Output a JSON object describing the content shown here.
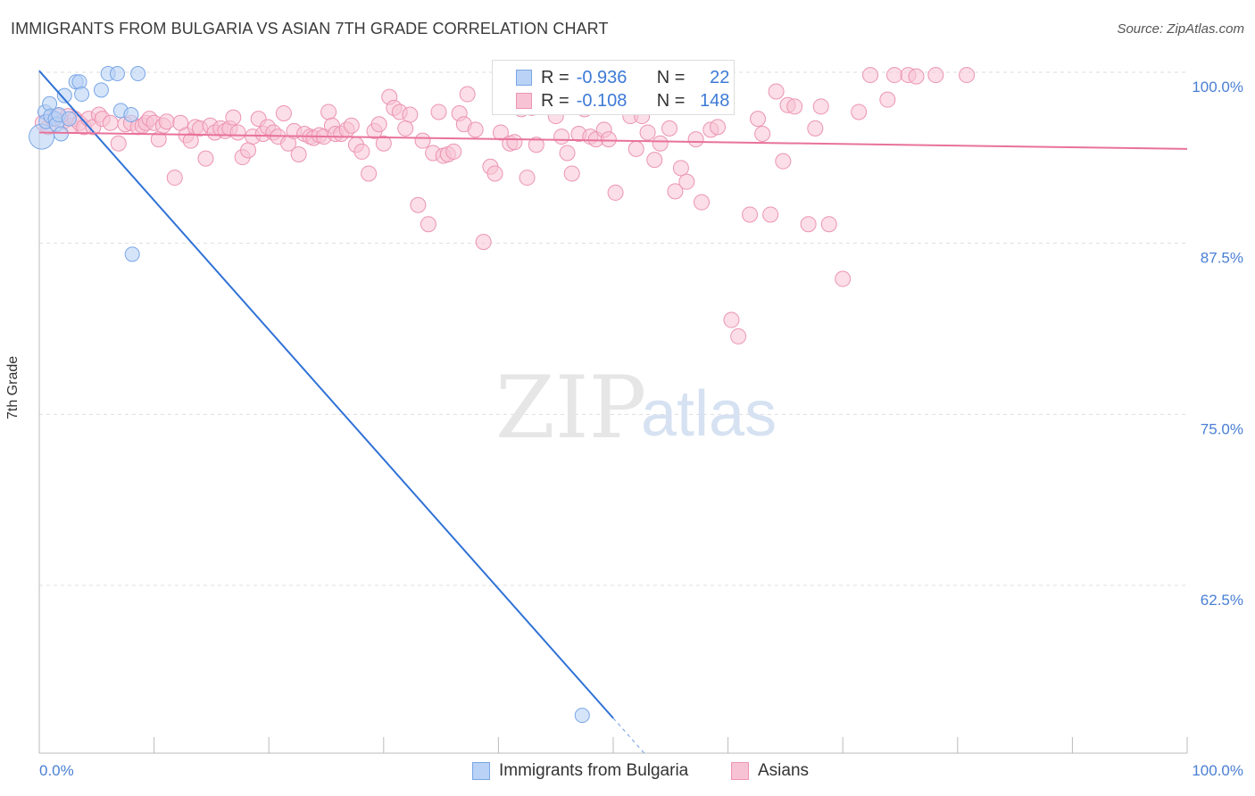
{
  "title": "IMMIGRANTS FROM BULGARIA VS ASIAN 7TH GRADE CORRELATION CHART",
  "source": "Source: ZipAtlas.com",
  "watermark": {
    "zip": "ZIP",
    "atlas": "atlas"
  },
  "colors": {
    "bulgaria_fill": "#b9d2f5",
    "bulgaria_stroke": "#7aa6e6",
    "bulgaria_line": "#2f72d6",
    "asians_fill": "#f7c3d4",
    "asians_stroke": "#ec94b3",
    "asians_line": "#e8729a",
    "tick_label": "#4a7fd4",
    "grid": "#dddddd"
  },
  "legend": {
    "rows": [
      {
        "r_label": "R =",
        "r_value": "-0.936",
        "n_label": "N =",
        "n_value": "22"
      },
      {
        "r_label": "R =",
        "r_value": "-0.108",
        "n_label": "N =",
        "n_value": "148"
      }
    ]
  },
  "bottom_legend": {
    "series1": "Immigrants from Bulgaria",
    "series2": "Asians"
  },
  "chart_data": {
    "type": "scatter",
    "title": "IMMIGRANTS FROM BULGARIA VS ASIAN 7TH GRADE CORRELATION CHART",
    "xlabel": "",
    "ylabel": "7th Grade",
    "xlim": [
      0,
      100
    ],
    "ylim": [
      50,
      100
    ],
    "x_tick_labels": [
      "0.0%",
      "100.0%"
    ],
    "y_ticks": [
      100.0,
      87.5,
      75.0,
      62.5
    ],
    "y_tick_labels": [
      "100.0%",
      "87.5%",
      "75.0%",
      "62.5%"
    ],
    "grid": true,
    "legend_position": "top-center",
    "series": [
      {
        "name": "Immigrants from Bulgaria",
        "r": -0.936,
        "n": 22,
        "trend": {
          "x0": 0.0,
          "y0": 100.1,
          "x1": 50.0,
          "y1": 52.8
        },
        "points": [
          [
            0.2,
            95.3
          ],
          [
            0.5,
            97.1
          ],
          [
            0.6,
            96.4
          ],
          [
            0.9,
            97.7
          ],
          [
            1.0,
            96.8
          ],
          [
            1.4,
            96.6
          ],
          [
            1.5,
            96.2
          ],
          [
            1.7,
            96.9
          ],
          [
            1.9,
            95.5
          ],
          [
            2.2,
            98.3
          ],
          [
            2.6,
            96.6
          ],
          [
            3.2,
            99.3
          ],
          [
            3.5,
            99.3
          ],
          [
            3.7,
            98.4
          ],
          [
            5.4,
            98.7
          ],
          [
            6.0,
            99.9
          ],
          [
            6.8,
            99.9
          ],
          [
            7.1,
            97.2
          ],
          [
            8.0,
            96.9
          ],
          [
            8.1,
            86.7
          ],
          [
            8.6,
            99.9
          ],
          [
            47.3,
            53.0
          ]
        ]
      },
      {
        "name": "Asians",
        "r": -0.108,
        "n": 148,
        "trend": {
          "x0": 0.0,
          "y0": 95.6,
          "x1": 100.0,
          "y1": 94.4
        },
        "points": [
          [
            0.3,
            96.3
          ],
          [
            0.8,
            96.0
          ],
          [
            1.2,
            96.6
          ],
          [
            1.6,
            96.8
          ],
          [
            2.1,
            96.4
          ],
          [
            2.5,
            96.8
          ],
          [
            2.8,
            96.1
          ],
          [
            3.1,
            96.6
          ],
          [
            3.5,
            96.3
          ],
          [
            3.9,
            96.0
          ],
          [
            4.3,
            96.6
          ],
          [
            4.7,
            96.0
          ],
          [
            5.2,
            96.9
          ],
          [
            5.5,
            96.6
          ],
          [
            6.2,
            96.3
          ],
          [
            6.9,
            94.8
          ],
          [
            7.5,
            96.2
          ],
          [
            8.0,
            96.3
          ],
          [
            8.6,
            96.0
          ],
          [
            9.0,
            96.1
          ],
          [
            9.3,
            96.3
          ],
          [
            9.6,
            96.6
          ],
          [
            10.0,
            96.3
          ],
          [
            10.4,
            95.1
          ],
          [
            10.8,
            96.1
          ],
          [
            11.1,
            96.4
          ],
          [
            11.8,
            92.3
          ],
          [
            12.3,
            96.3
          ],
          [
            12.8,
            95.4
          ],
          [
            13.2,
            95.0
          ],
          [
            13.6,
            96.0
          ],
          [
            14.0,
            95.9
          ],
          [
            14.5,
            93.7
          ],
          [
            14.9,
            96.1
          ],
          [
            15.3,
            95.6
          ],
          [
            15.8,
            95.9
          ],
          [
            16.2,
            95.7
          ],
          [
            16.6,
            95.9
          ],
          [
            16.9,
            96.7
          ],
          [
            17.3,
            95.6
          ],
          [
            17.7,
            93.8
          ],
          [
            18.2,
            94.3
          ],
          [
            18.6,
            95.3
          ],
          [
            19.1,
            96.6
          ],
          [
            19.5,
            95.5
          ],
          [
            19.9,
            96.0
          ],
          [
            20.4,
            95.6
          ],
          [
            20.8,
            95.3
          ],
          [
            21.3,
            97.0
          ],
          [
            21.7,
            94.8
          ],
          [
            22.2,
            95.7
          ],
          [
            22.6,
            94.0
          ],
          [
            23.1,
            95.5
          ],
          [
            23.6,
            95.3
          ],
          [
            23.9,
            95.2
          ],
          [
            24.4,
            95.4
          ],
          [
            24.8,
            95.3
          ],
          [
            25.2,
            97.1
          ],
          [
            25.5,
            96.1
          ],
          [
            25.8,
            95.5
          ],
          [
            26.3,
            95.5
          ],
          [
            26.8,
            95.8
          ],
          [
            27.2,
            96.1
          ],
          [
            27.6,
            94.7
          ],
          [
            28.1,
            94.2
          ],
          [
            28.7,
            92.6
          ],
          [
            29.2,
            95.7
          ],
          [
            29.6,
            96.2
          ],
          [
            30.0,
            94.8
          ],
          [
            30.5,
            98.2
          ],
          [
            30.9,
            97.4
          ],
          [
            31.4,
            97.1
          ],
          [
            31.9,
            95.9
          ],
          [
            32.3,
            96.9
          ],
          [
            33.0,
            90.3
          ],
          [
            33.4,
            95.0
          ],
          [
            33.9,
            88.9
          ],
          [
            34.3,
            94.1
          ],
          [
            34.8,
            97.1
          ],
          [
            35.2,
            93.9
          ],
          [
            35.6,
            94.0
          ],
          [
            36.1,
            94.2
          ],
          [
            36.6,
            97.0
          ],
          [
            37.0,
            96.2
          ],
          [
            37.3,
            98.4
          ],
          [
            38.0,
            95.8
          ],
          [
            38.7,
            87.6
          ],
          [
            39.3,
            93.1
          ],
          [
            39.7,
            92.6
          ],
          [
            40.2,
            95.6
          ],
          [
            40.6,
            98.2
          ],
          [
            41.0,
            94.8
          ],
          [
            41.4,
            94.9
          ],
          [
            42.0,
            97.3
          ],
          [
            42.5,
            92.3
          ],
          [
            42.9,
            97.4
          ],
          [
            43.3,
            94.7
          ],
          [
            44.1,
            97.9
          ],
          [
            45.0,
            96.8
          ],
          [
            45.5,
            95.3
          ],
          [
            46.0,
            94.1
          ],
          [
            46.4,
            92.6
          ],
          [
            47.0,
            95.5
          ],
          [
            47.5,
            97.3
          ],
          [
            48.0,
            95.3
          ],
          [
            48.5,
            95.1
          ],
          [
            49.2,
            95.8
          ],
          [
            49.6,
            95.1
          ],
          [
            50.2,
            91.2
          ],
          [
            51.0,
            97.9
          ],
          [
            51.5,
            96.8
          ],
          [
            52.0,
            94.4
          ],
          [
            52.5,
            96.8
          ],
          [
            53.0,
            95.6
          ],
          [
            53.6,
            93.6
          ],
          [
            54.1,
            94.8
          ],
          [
            54.9,
            95.9
          ],
          [
            55.4,
            91.3
          ],
          [
            55.9,
            93.0
          ],
          [
            56.4,
            92.0
          ],
          [
            57.2,
            95.1
          ],
          [
            57.7,
            90.5
          ],
          [
            58.5,
            95.8
          ],
          [
            59.1,
            96.0
          ],
          [
            59.7,
            98.7
          ],
          [
            60.3,
            81.9
          ],
          [
            60.9,
            80.7
          ],
          [
            61.9,
            89.6
          ],
          [
            62.6,
            96.6
          ],
          [
            63.0,
            95.5
          ],
          [
            63.7,
            89.6
          ],
          [
            64.2,
            98.6
          ],
          [
            64.8,
            93.5
          ],
          [
            65.2,
            97.6
          ],
          [
            65.8,
            97.5
          ],
          [
            67.0,
            88.9
          ],
          [
            67.6,
            95.9
          ],
          [
            68.1,
            97.5
          ],
          [
            68.8,
            88.9
          ],
          [
            70.0,
            84.9
          ],
          [
            71.4,
            97.1
          ],
          [
            72.4,
            99.8
          ],
          [
            73.9,
            98.0
          ],
          [
            74.5,
            99.8
          ],
          [
            75.7,
            99.8
          ],
          [
            76.4,
            99.7
          ],
          [
            78.1,
            99.8
          ],
          [
            80.8,
            99.8
          ]
        ]
      }
    ]
  }
}
